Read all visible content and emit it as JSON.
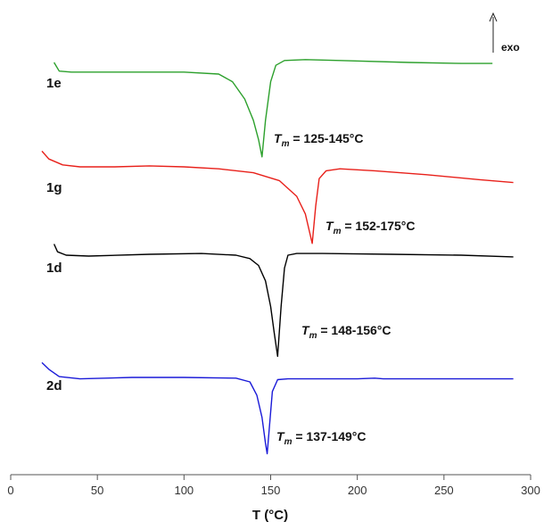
{
  "chart_data": {
    "type": "line",
    "title": "",
    "xlabel": "T (°C)",
    "ylabel": "",
    "xlim": [
      0,
      300
    ],
    "xticks": [
      0,
      50,
      100,
      150,
      200,
      250,
      300
    ],
    "grid": false,
    "direction_indicator": {
      "label": "exo",
      "arrow": "up"
    },
    "series": [
      {
        "name": "1e",
        "color": "#2ca02c",
        "annotation": {
          "symbol": "T",
          "subscript": "m",
          "text": " = 125-145°C"
        },
        "x": [
          25,
          28,
          35,
          60,
          100,
          120,
          128,
          135,
          140,
          143,
          145,
          147,
          150,
          153,
          158,
          170,
          190,
          230,
          260,
          278
        ],
        "y": [
          0.0,
          -0.9,
          -1.0,
          -1.0,
          -1.0,
          -1.2,
          -2.0,
          -3.8,
          -6.0,
          -8.0,
          -9.8,
          -6.0,
          -2.0,
          -0.3,
          0.2,
          0.3,
          0.2,
          0.0,
          -0.1,
          -0.1
        ]
      },
      {
        "name": "1g",
        "color": "#e8201a",
        "annotation": {
          "symbol": "T",
          "subscript": "m",
          "text": " = 152-175°C"
        },
        "x": [
          18,
          22,
          30,
          40,
          60,
          80,
          100,
          120,
          140,
          155,
          165,
          170,
          174,
          176,
          178,
          182,
          190,
          210,
          240,
          270,
          290
        ],
        "y": [
          1.6,
          0.8,
          0.2,
          0.0,
          0.0,
          0.1,
          0.0,
          -0.2,
          -0.6,
          -1.4,
          -3.0,
          -4.8,
          -7.8,
          -4.0,
          -1.2,
          -0.4,
          -0.2,
          -0.4,
          -0.8,
          -1.3,
          -1.6
        ]
      },
      {
        "name": "1d",
        "color": "#000000",
        "annotation": {
          "symbol": "T",
          "subscript": "m",
          "text": " = 148-156°C"
        },
        "x": [
          25,
          27,
          32,
          45,
          80,
          110,
          130,
          138,
          143,
          147,
          150,
          152,
          154,
          156,
          158,
          160,
          165,
          180,
          220,
          260,
          290
        ],
        "y": [
          1.3,
          0.4,
          0.0,
          -0.1,
          0.1,
          0.2,
          0.0,
          -0.4,
          -1.2,
          -3.0,
          -6.0,
          -9.0,
          -11.8,
          -6.0,
          -1.5,
          0.0,
          0.2,
          0.2,
          0.1,
          0.0,
          -0.2
        ]
      },
      {
        "name": "2d",
        "color": "#1a1ad8",
        "annotation": {
          "symbol": "T",
          "subscript": "m",
          "text": " = 137-149°C"
        },
        "x": [
          18,
          22,
          28,
          40,
          70,
          100,
          130,
          138,
          142,
          145,
          147,
          148,
          149,
          151,
          154,
          160,
          200,
          210,
          215,
          225,
          240,
          290
        ],
        "y": [
          1.4,
          0.5,
          -0.5,
          -0.8,
          -0.6,
          -0.6,
          -0.7,
          -1.2,
          -3.0,
          -6.0,
          -9.5,
          -10.9,
          -8.0,
          -2.5,
          -0.9,
          -0.8,
          -0.8,
          -0.7,
          -0.8,
          -0.8,
          -0.8,
          -0.8
        ]
      }
    ]
  }
}
